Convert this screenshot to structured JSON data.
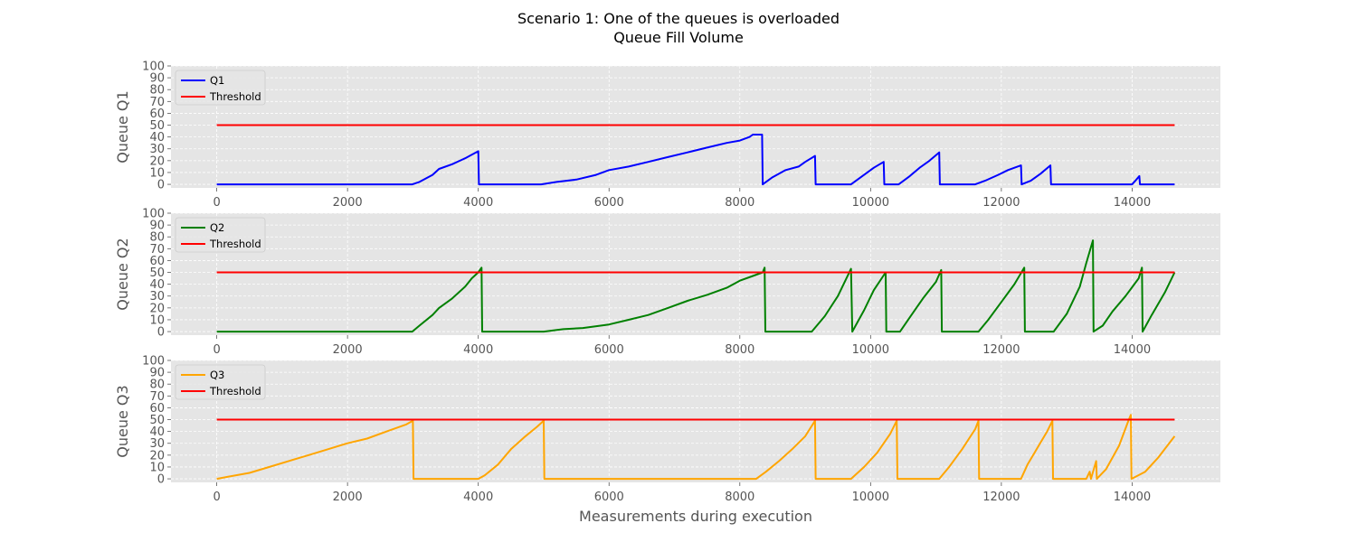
{
  "chart_data": {
    "type": "line",
    "title": "Scenario 1: One of the queues is overloaded",
    "subtitle": "Queue Fill Volume",
    "xlabel": "Measurements during execution",
    "xlim": [
      -700,
      15350
    ],
    "x_ticks": [
      0,
      2000,
      4000,
      6000,
      8000,
      10000,
      12000,
      14000
    ],
    "ylim": [
      -3,
      100
    ],
    "y_ticks": [
      0,
      10,
      20,
      30,
      40,
      50,
      60,
      70,
      80,
      90,
      100
    ],
    "grid": true,
    "legend_position": "upper-left",
    "subplots": [
      {
        "ylabel": "Queue Q1",
        "series": [
          {
            "name": "Q1",
            "color": "#0000ff",
            "points": [
              [
                0,
                0
              ],
              [
                2990,
                0
              ],
              [
                3100,
                2
              ],
              [
                3300,
                8
              ],
              [
                3400,
                13
              ],
              [
                3600,
                17
              ],
              [
                3800,
                22
              ],
              [
                3900,
                25
              ],
              [
                4000,
                28
              ],
              [
                4010,
                0
              ],
              [
                4960,
                0
              ],
              [
                5200,
                2
              ],
              [
                5500,
                4
              ],
              [
                5800,
                8
              ],
              [
                6000,
                12
              ],
              [
                6300,
                15
              ],
              [
                6600,
                19
              ],
              [
                6900,
                23
              ],
              [
                7200,
                27
              ],
              [
                7500,
                31
              ],
              [
                7800,
                35
              ],
              [
                8000,
                37
              ],
              [
                8150,
                40
              ],
              [
                8200,
                42
              ],
              [
                8340,
                42
              ],
              [
                8350,
                0
              ],
              [
                8500,
                6
              ],
              [
                8700,
                12
              ],
              [
                8900,
                15
              ],
              [
                9000,
                19
              ],
              [
                9150,
                24
              ],
              [
                9160,
                0
              ],
              [
                9700,
                0
              ],
              [
                9900,
                8
              ],
              [
                10050,
                14
              ],
              [
                10200,
                19
              ],
              [
                10210,
                0
              ],
              [
                10430,
                0
              ],
              [
                10600,
                7
              ],
              [
                10750,
                14
              ],
              [
                10900,
                20
              ],
              [
                11050,
                27
              ],
              [
                11060,
                0
              ],
              [
                11600,
                0
              ],
              [
                11750,
                3
              ],
              [
                11950,
                8
              ],
              [
                12100,
                12
              ],
              [
                12300,
                16
              ],
              [
                12310,
                0
              ],
              [
                12450,
                3
              ],
              [
                12600,
                9
              ],
              [
                12750,
                16
              ],
              [
                12760,
                0
              ],
              [
                14000,
                0
              ],
              [
                14050,
                3
              ],
              [
                14110,
                7
              ],
              [
                14120,
                0
              ],
              [
                14650,
                0
              ]
            ]
          },
          {
            "name": "Threshold",
            "color": "#ff0000",
            "points": [
              [
                0,
                50
              ],
              [
                14650,
                50
              ]
            ]
          }
        ]
      },
      {
        "ylabel": "Queue Q2",
        "series": [
          {
            "name": "Q2",
            "color": "#008000",
            "points": [
              [
                0,
                0
              ],
              [
                2990,
                0
              ],
              [
                3100,
                5
              ],
              [
                3300,
                14
              ],
              [
                3400,
                20
              ],
              [
                3600,
                28
              ],
              [
                3800,
                38
              ],
              [
                3900,
                45
              ],
              [
                4000,
                50
              ],
              [
                4050,
                54
              ],
              [
                4060,
                0
              ],
              [
                5000,
                0
              ],
              [
                5300,
                2
              ],
              [
                5600,
                3
              ],
              [
                6000,
                6
              ],
              [
                6300,
                10
              ],
              [
                6600,
                14
              ],
              [
                6900,
                20
              ],
              [
                7200,
                26
              ],
              [
                7500,
                31
              ],
              [
                7800,
                37
              ],
              [
                8000,
                43
              ],
              [
                8200,
                47
              ],
              [
                8350,
                50
              ],
              [
                8380,
                54
              ],
              [
                8390,
                0
              ],
              [
                9100,
                0
              ],
              [
                9300,
                13
              ],
              [
                9500,
                30
              ],
              [
                9700,
                53
              ],
              [
                9720,
                0
              ],
              [
                9900,
                18
              ],
              [
                10050,
                35
              ],
              [
                10230,
                50
              ],
              [
                10240,
                0
              ],
              [
                10450,
                0
              ],
              [
                10600,
                12
              ],
              [
                10800,
                28
              ],
              [
                11000,
                42
              ],
              [
                11080,
                52
              ],
              [
                11090,
                0
              ],
              [
                11650,
                0
              ],
              [
                11800,
                10
              ],
              [
                12000,
                25
              ],
              [
                12200,
                40
              ],
              [
                12350,
                54
              ],
              [
                12360,
                0
              ],
              [
                12800,
                0
              ],
              [
                13000,
                15
              ],
              [
                13200,
                38
              ],
              [
                13300,
                58
              ],
              [
                13400,
                77
              ],
              [
                13410,
                0
              ],
              [
                13550,
                5
              ],
              [
                13700,
                17
              ],
              [
                13900,
                30
              ],
              [
                14100,
                45
              ],
              [
                14150,
                54
              ],
              [
                14160,
                0
              ],
              [
                14300,
                14
              ],
              [
                14500,
                33
              ],
              [
                14650,
                50
              ]
            ]
          },
          {
            "name": "Threshold",
            "color": "#ff0000",
            "points": [
              [
                0,
                50
              ],
              [
                14650,
                50
              ]
            ]
          }
        ]
      },
      {
        "ylabel": "Queue Q3",
        "series": [
          {
            "name": "Q3",
            "color": "#ffa500",
            "points": [
              [
                0,
                0
              ],
              [
                200,
                2
              ],
              [
                500,
                5
              ],
              [
                800,
                10
              ],
              [
                1100,
                15
              ],
              [
                1400,
                20
              ],
              [
                1700,
                25
              ],
              [
                2000,
                30
              ],
              [
                2300,
                34
              ],
              [
                2600,
                40
              ],
              [
                2900,
                46
              ],
              [
                3000,
                49
              ],
              [
                3010,
                0
              ],
              [
                4000,
                0
              ],
              [
                4100,
                3
              ],
              [
                4300,
                12
              ],
              [
                4500,
                25
              ],
              [
                4700,
                35
              ],
              [
                4900,
                44
              ],
              [
                5000,
                49
              ],
              [
                5010,
                0
              ],
              [
                8250,
                0
              ],
              [
                8400,
                6
              ],
              [
                8600,
                15
              ],
              [
                8800,
                25
              ],
              [
                9000,
                36
              ],
              [
                9150,
                49
              ],
              [
                9160,
                0
              ],
              [
                9700,
                0
              ],
              [
                9900,
                10
              ],
              [
                10100,
                22
              ],
              [
                10300,
                38
              ],
              [
                10400,
                49
              ],
              [
                10410,
                0
              ],
              [
                11050,
                0
              ],
              [
                11200,
                10
              ],
              [
                11400,
                25
              ],
              [
                11600,
                42
              ],
              [
                11650,
                49
              ],
              [
                11660,
                0
              ],
              [
                12300,
                0
              ],
              [
                12400,
                12
              ],
              [
                12550,
                26
              ],
              [
                12700,
                40
              ],
              [
                12780,
                49
              ],
              [
                12790,
                0
              ],
              [
                13300,
                0
              ],
              [
                13350,
                6
              ],
              [
                13370,
                0
              ],
              [
                13450,
                15
              ],
              [
                13460,
                0
              ],
              [
                13600,
                8
              ],
              [
                13800,
                28
              ],
              [
                13950,
                50
              ],
              [
                13980,
                54
              ],
              [
                13990,
                0
              ],
              [
                14200,
                6
              ],
              [
                14400,
                18
              ],
              [
                14650,
                36
              ]
            ]
          },
          {
            "name": "Threshold",
            "color": "#ff0000",
            "points": [
              [
                0,
                50
              ],
              [
                14650,
                50
              ]
            ]
          }
        ]
      }
    ]
  }
}
